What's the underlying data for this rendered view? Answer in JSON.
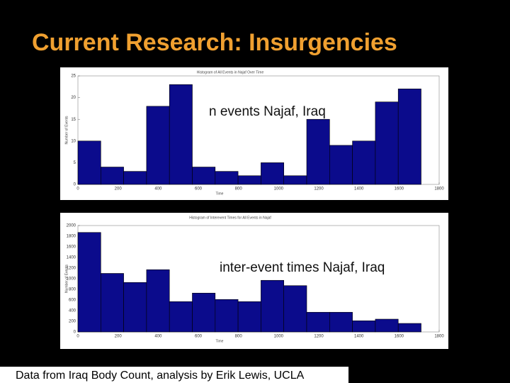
{
  "title": "Current Research: Insurgencies",
  "footer": "Data from Iraq Body Count, analysis by Erik Lewis, UCLA",
  "chart_data": [
    {
      "type": "histogram",
      "title": "Histogram of All Events in Najaf Over Time",
      "annotation": "n events Najaf, Iraq",
      "xlabel": "Time",
      "ylabel": "Number of Events",
      "bins": [
        0,
        114,
        228,
        342,
        456,
        570,
        684,
        798,
        912,
        1026,
        1140,
        1254,
        1368,
        1482,
        1596,
        1710
      ],
      "values": [
        10,
        4,
        3,
        18,
        23,
        4,
        3,
        2,
        5,
        2,
        15,
        9,
        10,
        19,
        22
      ],
      "color": "#0b0b8c",
      "xlim": [
        0,
        1800
      ],
      "xticks": [
        0,
        200,
        400,
        600,
        800,
        1000,
        1200,
        1400,
        1600,
        1800
      ],
      "ylim": [
        0,
        25
      ],
      "yticks": [
        0,
        5,
        10,
        15,
        20,
        25
      ]
    },
    {
      "type": "histogram",
      "title": "Histogram of Interevent Times for All Events in Najaf",
      "annotation": "inter-event times Najaf, Iraq",
      "xlabel": "Time",
      "ylabel": "Number of Events",
      "bins": [
        0,
        114,
        228,
        342,
        456,
        570,
        684,
        798,
        912,
        1026,
        1140,
        1254,
        1368,
        1482,
        1596,
        1710
      ],
      "values": [
        1870,
        1100,
        930,
        1170,
        570,
        730,
        610,
        570,
        970,
        870,
        370,
        370,
        210,
        240,
        160
      ],
      "color": "#0b0b8c",
      "xlim": [
        0,
        1800
      ],
      "xticks": [
        0,
        200,
        400,
        600,
        800,
        1000,
        1200,
        1400,
        1600,
        1800
      ],
      "ylim": [
        0,
        2000
      ],
      "yticks": [
        0,
        200,
        400,
        600,
        800,
        1000,
        1200,
        1400,
        1600,
        1800,
        2000
      ]
    }
  ]
}
